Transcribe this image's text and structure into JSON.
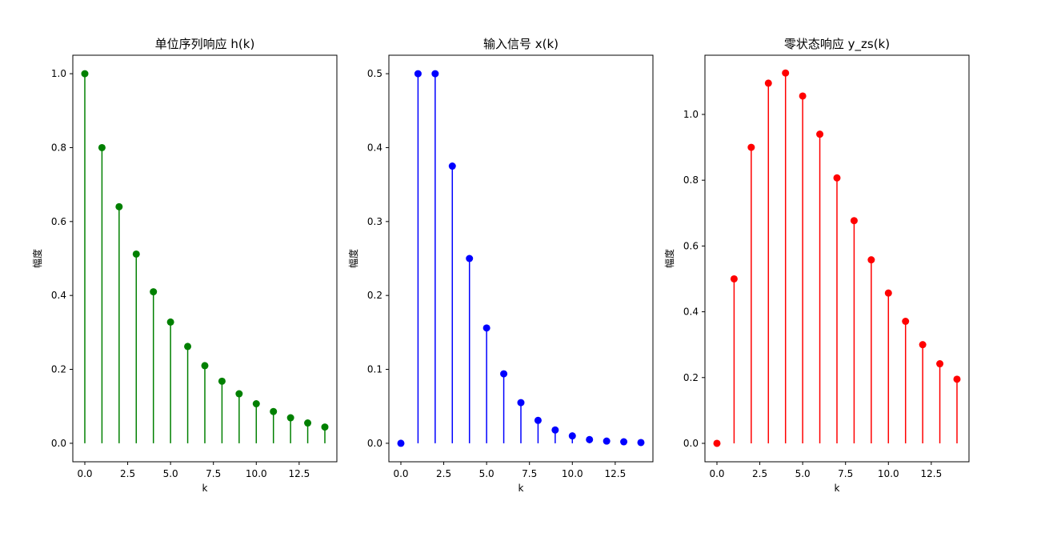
{
  "chart_data": [
    {
      "type": "stem",
      "title": "单位序列响应 h(k)",
      "xlabel": "k",
      "ylabel": "幅度",
      "color": "#008000",
      "xlim": [
        -0.7,
        14.7
      ],
      "ylim": [
        -0.05,
        1.05
      ],
      "x_ticks": [
        "0.0",
        "2.5",
        "5.0",
        "7.5",
        "10.0",
        "12.5"
      ],
      "y_ticks": [
        "0.0",
        "0.2",
        "0.4",
        "0.6",
        "0.8",
        "1.0"
      ],
      "x": [
        0,
        1,
        2,
        3,
        4,
        5,
        6,
        7,
        8,
        9,
        10,
        11,
        12,
        13,
        14
      ],
      "values": [
        1.0,
        0.8,
        0.64,
        0.512,
        0.41,
        0.328,
        0.262,
        0.21,
        0.168,
        0.134,
        0.107,
        0.086,
        0.069,
        0.055,
        0.044
      ]
    },
    {
      "type": "stem",
      "title": "输入信号 x(k)",
      "xlabel": "k",
      "ylabel": "幅度",
      "color": "#0000ff",
      "xlim": [
        -0.7,
        14.7
      ],
      "ylim": [
        -0.025,
        0.525
      ],
      "x_ticks": [
        "0.0",
        "2.5",
        "5.0",
        "7.5",
        "10.0",
        "12.5"
      ],
      "y_ticks": [
        "0.0",
        "0.1",
        "0.2",
        "0.3",
        "0.4",
        "0.5"
      ],
      "x": [
        0,
        1,
        2,
        3,
        4,
        5,
        6,
        7,
        8,
        9,
        10,
        11,
        12,
        13,
        14
      ],
      "values": [
        0.0,
        0.5,
        0.5,
        0.375,
        0.25,
        0.156,
        0.094,
        0.055,
        0.031,
        0.018,
        0.01,
        0.005,
        0.003,
        0.002,
        0.001
      ]
    },
    {
      "type": "stem",
      "title": "零状态响应 y_zs(k)",
      "xlabel": "k",
      "ylabel": "幅度",
      "color": "#ff0000",
      "xlim": [
        -0.7,
        14.7
      ],
      "ylim": [
        -0.056,
        1.18
      ],
      "x_ticks": [
        "0.0",
        "2.5",
        "5.0",
        "7.5",
        "10.0",
        "12.5"
      ],
      "y_ticks": [
        "0.0",
        "0.2",
        "0.4",
        "0.6",
        "0.8",
        "1.0"
      ],
      "x": [
        0,
        1,
        2,
        3,
        4,
        5,
        6,
        7,
        8,
        9,
        10,
        11,
        12,
        13,
        14
      ],
      "values": [
        0.0,
        0.5,
        0.9,
        1.095,
        1.126,
        1.056,
        0.94,
        0.807,
        0.677,
        0.558,
        0.457,
        0.371,
        0.3,
        0.242,
        0.195
      ]
    }
  ]
}
